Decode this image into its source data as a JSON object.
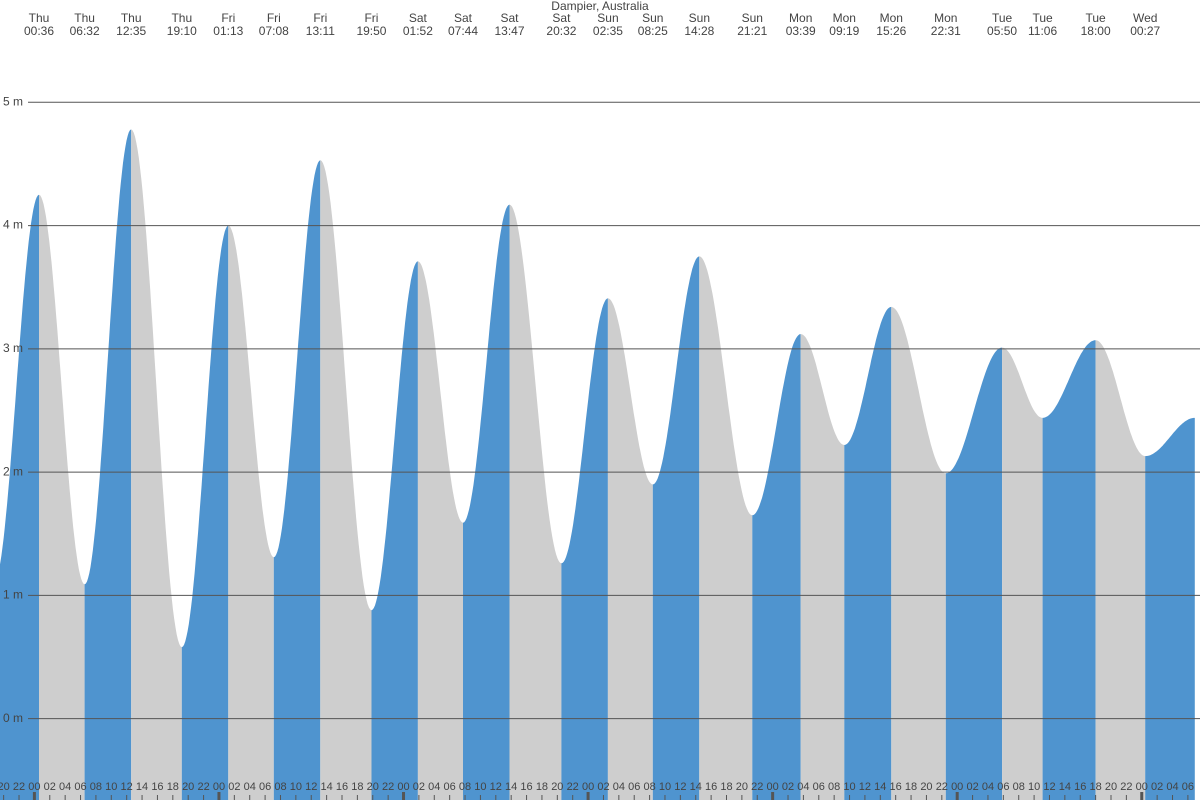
{
  "chart_data": {
    "type": "tide",
    "title": "Dampier, Australia",
    "days": [
      "Thu",
      "Thu",
      "Thu",
      "Thu",
      "Fri",
      "Fri",
      "Fri",
      "Fri",
      "Sat",
      "Sat",
      "Sat",
      "Sat",
      "Sun",
      "Sun",
      "Sun",
      "Sun",
      "Mon",
      "Mon",
      "Mon",
      "Mon",
      "Tue",
      "Tue",
      "Tue",
      "Wed"
    ],
    "times": [
      "00:36",
      "06:32",
      "12:35",
      "19:10",
      "01:13",
      "07:08",
      "13:11",
      "19:50",
      "01:52",
      "07:44",
      "13:47",
      "20:32",
      "02:35",
      "08:25",
      "14:28",
      "21:21",
      "03:39",
      "09:19",
      "15:26",
      "22:31",
      "05:50",
      "11:06",
      "18:00",
      "00:27"
    ],
    "values": [
      4.25,
      1.09,
      4.78,
      0.58,
      4.0,
      1.31,
      4.53,
      0.88,
      3.71,
      1.59,
      4.17,
      1.26,
      3.41,
      1.9,
      3.75,
      1.65,
      3.12,
      2.22,
      3.34,
      1.99,
      3.01,
      2.44,
      3.07,
      2.13
    ],
    "ylim": [
      -0.66,
      5.83
    ],
    "yticks": [
      {
        "value": 0,
        "label": "0 m"
      },
      {
        "value": 1,
        "label": "1 m"
      },
      {
        "value": 2,
        "label": "2 m"
      },
      {
        "value": 3,
        "label": "3 m"
      },
      {
        "value": 4,
        "label": "4 m"
      },
      {
        "value": 5,
        "label": "5 m"
      }
    ],
    "hour_labels": [
      "20",
      "22",
      "00",
      "02",
      "04",
      "06",
      "08",
      "10",
      "12",
      "14",
      "16",
      "18",
      "20",
      "22",
      "00",
      "02",
      "04",
      "06",
      "08",
      "10",
      "12",
      "14",
      "16",
      "18",
      "20",
      "22",
      "00",
      "02",
      "04",
      "06",
      "08",
      "10",
      "12",
      "14",
      "16",
      "18",
      "20",
      "22",
      "00",
      "02",
      "04",
      "06",
      "08",
      "10",
      "12",
      "14",
      "16",
      "18",
      "20",
      "22",
      "00",
      "02",
      "04",
      "06",
      "08",
      "10",
      "12",
      "14",
      "16",
      "18",
      "20",
      "22",
      "00",
      "02",
      "04",
      "06",
      "08",
      "10",
      "12",
      "14",
      "16",
      "18",
      "20",
      "22",
      "00",
      "02",
      "04",
      "06"
    ],
    "colors": {
      "rising": "#4f94cf",
      "falling": "#cecece",
      "grid": "#555555"
    },
    "grid": true
  }
}
